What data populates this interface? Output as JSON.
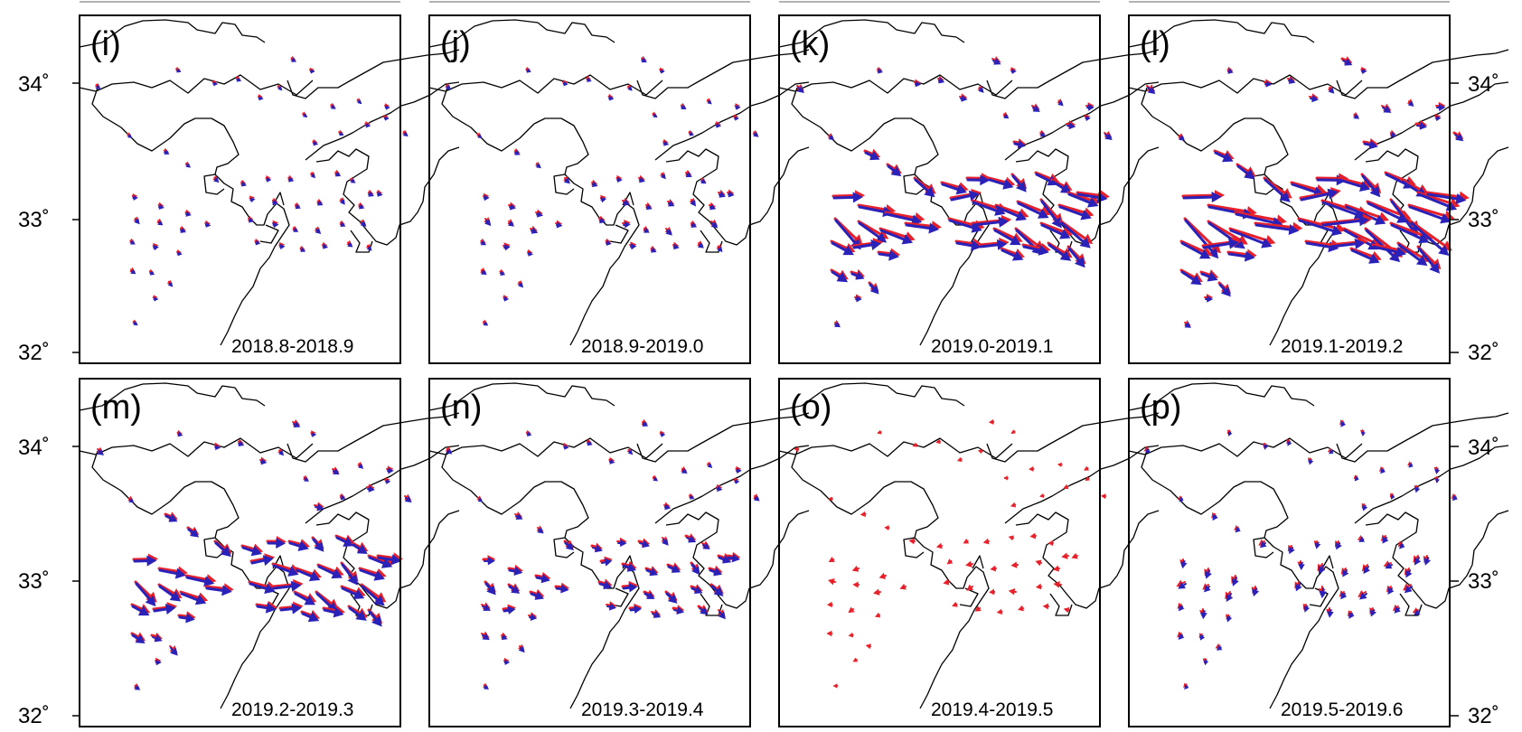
{
  "figure": {
    "axis_labels": {
      "lat_34": "34˚",
      "lat_33": "33˚",
      "lat_32": "32˚"
    },
    "colors": {
      "observed": "#e8202a",
      "model": "#2a22b8",
      "coast": "#000000"
    },
    "panels": [
      {
        "letter": "(i)",
        "period": "2018.8-2018.9",
        "intensity": 0.35,
        "fan": 0.2,
        "rot": 0.0,
        "redOnly": false
      },
      {
        "letter": "(j)",
        "period": "2018.9-2019.0",
        "intensity": 0.45,
        "fan": 0.25,
        "rot": 0.0,
        "redOnly": false
      },
      {
        "letter": "(k)",
        "period": "2019.0-2019.1",
        "intensity": 1.0,
        "fan": 0.9,
        "rot": 0.0,
        "redOnly": false
      },
      {
        "letter": "(l)",
        "period": "2019.1-2019.2",
        "intensity": 1.2,
        "fan": 1.0,
        "rot": 0.0,
        "redOnly": false
      },
      {
        "letter": "(m)",
        "period": "2019.2-2019.3",
        "intensity": 0.85,
        "fan": 0.8,
        "rot": 0.0,
        "redOnly": false
      },
      {
        "letter": "(n)",
        "period": "2019.3-2019.4",
        "intensity": 0.6,
        "fan": 0.5,
        "rot": 0.0,
        "redOnly": false
      },
      {
        "letter": "(o)",
        "period": "2019.4-2019.5",
        "intensity": 0.4,
        "fan": 0.3,
        "rot": 2.6,
        "redOnly": true
      },
      {
        "letter": "(p)",
        "period": "2019.5-2019.6",
        "intensity": 0.45,
        "fan": 0.4,
        "rot": 1.8,
        "redOnly": false
      }
    ]
  }
}
